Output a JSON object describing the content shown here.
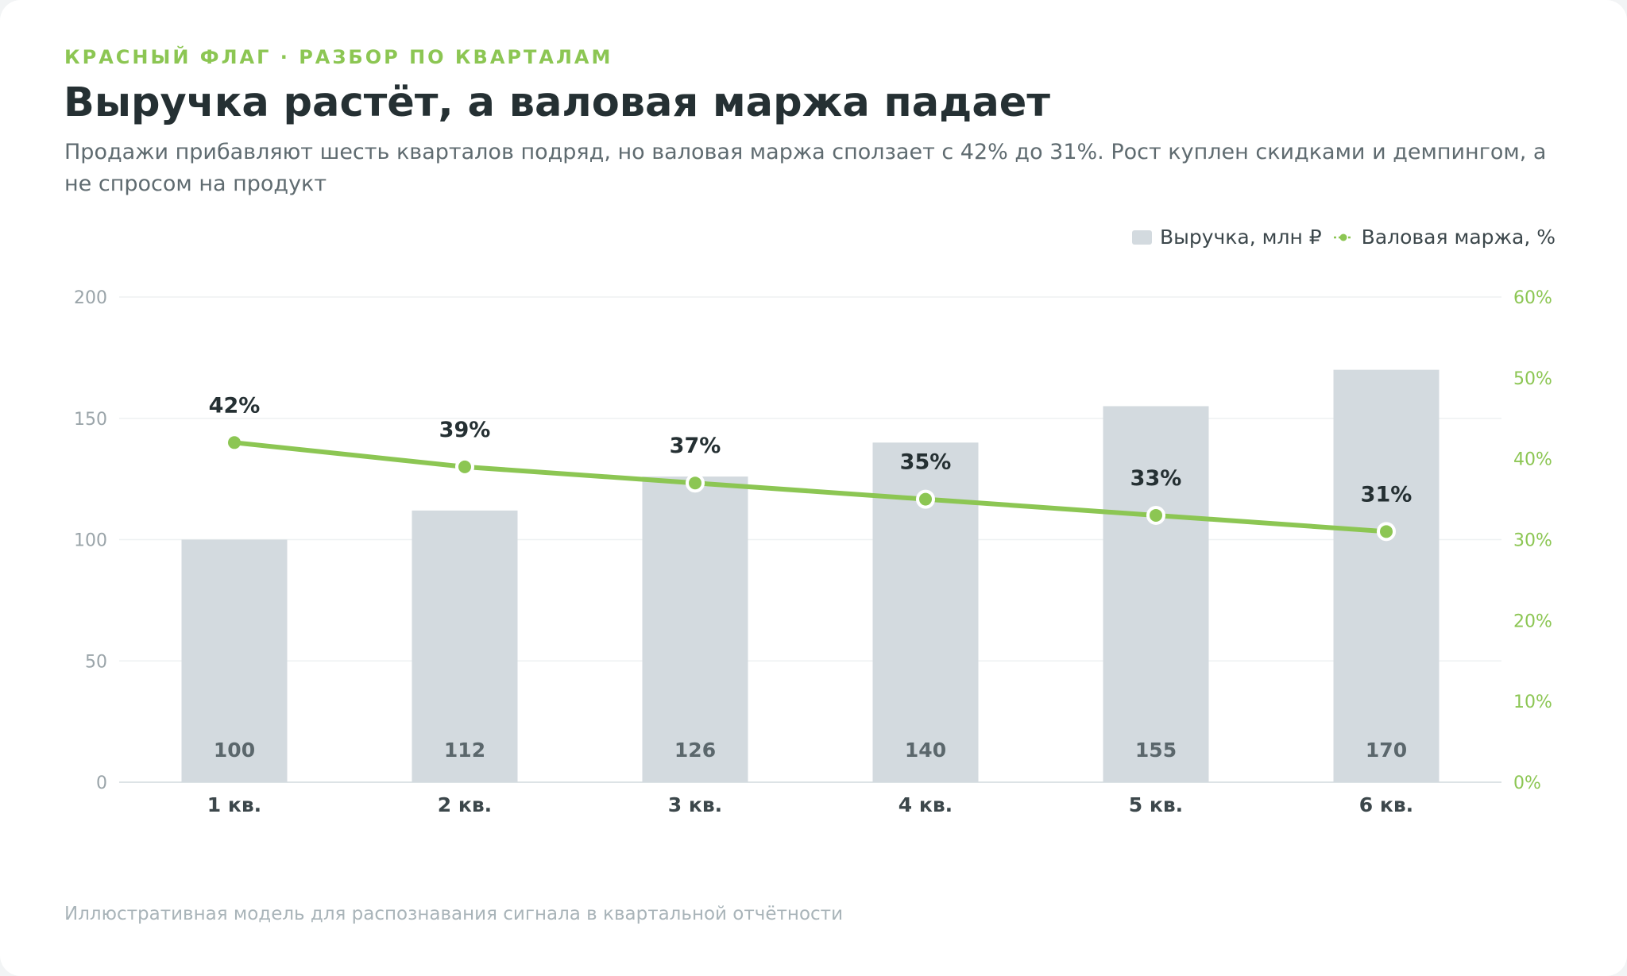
{
  "header": {
    "eyebrow": "КРАСНЫЙ ФЛАГ · РАЗБОР ПО КВАРТАЛАМ",
    "title": "Выручка растёт, а валовая маржа падает",
    "subtitle": "Продажи прибавляют шесть кварталов подряд, но валовая маржа сползает с 42% до 31%. Рост куплен скидками и демпингом, а не спросом на продукт"
  },
  "legend": {
    "revenue": "Выручка, млн ₽",
    "margin": "Валовая маржа, %"
  },
  "footnote": "Иллюстративная модель для распознавания сигнала в квартальной отчётности",
  "colors": {
    "bar": "#d3dadf",
    "line": "#8cc653",
    "accent": "#8cc653",
    "text_dark": "#253033",
    "bar_label": "#5b676c",
    "axis_left": "#9aa4a9"
  },
  "chart_data": {
    "type": "bar",
    "categories": [
      "1 кв.",
      "2 кв.",
      "3 кв.",
      "4 кв.",
      "5 кв.",
      "6 кв."
    ],
    "series": [
      {
        "name": "Выручка, млн ₽",
        "type": "bar",
        "axis": "left",
        "values": [
          100,
          112,
          126,
          140,
          155,
          170
        ]
      },
      {
        "name": "Валовая маржа, %",
        "type": "line",
        "axis": "right",
        "values": [
          42,
          39,
          37,
          35,
          33,
          31
        ]
      }
    ],
    "y_left": {
      "min": 0,
      "max": 200,
      "ticks": [
        0,
        50,
        100,
        150,
        200
      ]
    },
    "y_right": {
      "min": 0,
      "max": 60,
      "ticks": [
        0,
        10,
        20,
        30,
        40,
        50,
        60
      ],
      "suffix": "%"
    },
    "bar_labels": [
      "100",
      "112",
      "126",
      "140",
      "155",
      "170"
    ],
    "point_labels": [
      "42%",
      "39%",
      "37%",
      "35%",
      "33%",
      "31%"
    ],
    "grid": true,
    "legend_position": "top-right"
  }
}
